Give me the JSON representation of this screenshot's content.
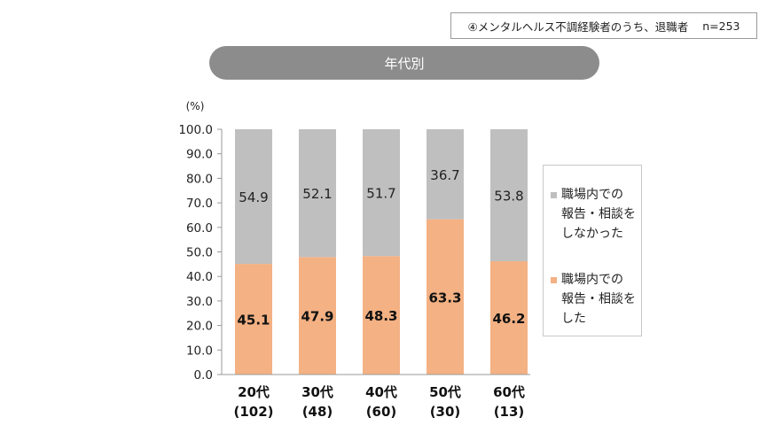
{
  "note": {
    "label": "④メンタルヘルス不調経験者のうち、退職者",
    "n": "n=253"
  },
  "panel_title": "年代別",
  "colors": {
    "reported": "#f4b183",
    "not_reported": "#bfbfbf",
    "axis": "#9a9a9a",
    "pill": "#8c8c8c"
  },
  "legend": [
    {
      "label": "職場内での\n報告・相談を\nしなかった",
      "color": "#bfbfbf"
    },
    {
      "label": "職場内での\n報告・相談を\nした",
      "color": "#f4b183"
    }
  ],
  "chart_data": {
    "type": "bar",
    "stacked": true,
    "ylabel": "(%)",
    "ylim": [
      0,
      100
    ],
    "yticks": [
      "0.0",
      "10.0",
      "20.0",
      "30.0",
      "40.0",
      "50.0",
      "60.0",
      "70.0",
      "80.0",
      "90.0",
      "100.0"
    ],
    "categories": [
      "20代",
      "30代",
      "40代",
      "50代",
      "60代"
    ],
    "category_n": [
      "(102)",
      "(48)",
      "(60)",
      "(30)",
      "(13)"
    ],
    "series": [
      {
        "name": "職場内での報告・相談をした",
        "values": [
          45.1,
          47.9,
          48.3,
          63.3,
          46.2
        ],
        "labels": [
          "45.1",
          "47.9",
          "48.3",
          "63.3",
          "46.2"
        ]
      },
      {
        "name": "職場内での報告・相談をしなかった",
        "values": [
          54.9,
          52.1,
          51.7,
          36.7,
          53.8
        ],
        "labels": [
          "54.9",
          "52.1",
          "51.7",
          "36.7",
          "53.8"
        ]
      }
    ],
    "legend_position": "right",
    "grid": false
  }
}
